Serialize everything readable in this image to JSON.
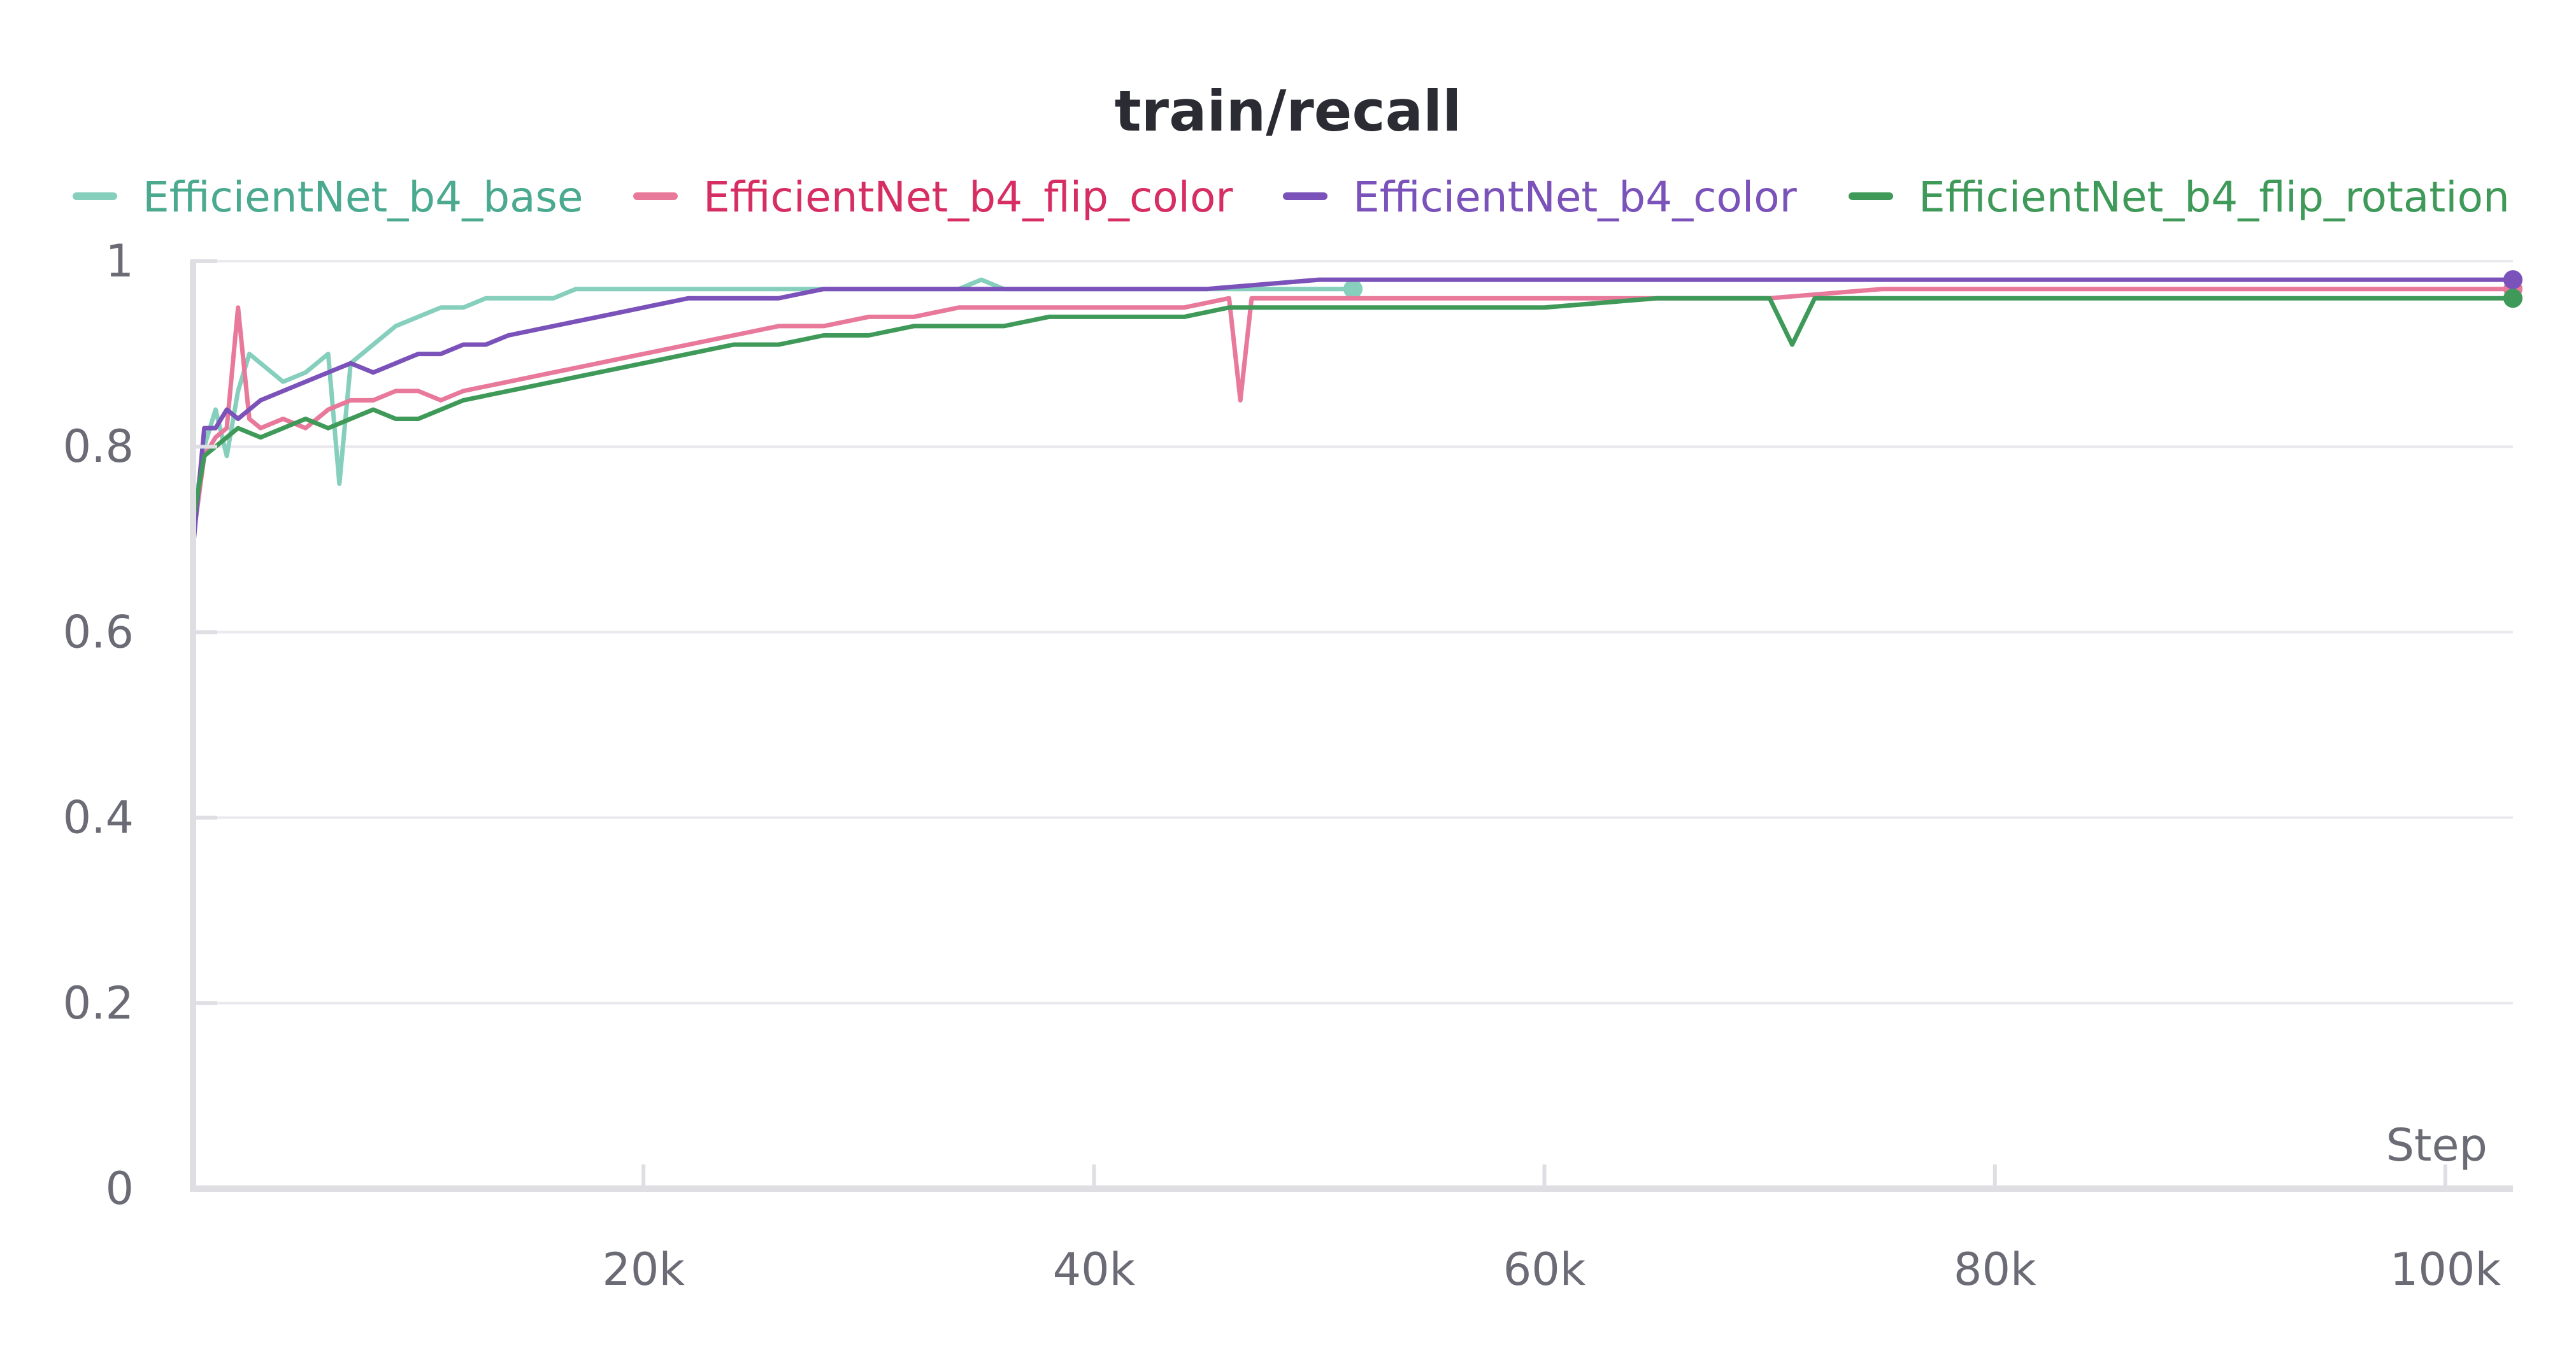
{
  "chart_data": {
    "type": "line",
    "title": "train/recall",
    "xlabel": "Step",
    "ylabel": "",
    "xlim": [
      0,
      103000
    ],
    "ylim": [
      0,
      1
    ],
    "grid": true,
    "legend_placement": "top",
    "x_ticks": [
      {
        "value": 20000,
        "label": "20k"
      },
      {
        "value": 40000,
        "label": "40k"
      },
      {
        "value": 60000,
        "label": "60k"
      },
      {
        "value": 80000,
        "label": "80k"
      },
      {
        "value": 100000,
        "label": "100k"
      }
    ],
    "y_ticks": [
      {
        "value": 0,
        "label": "0"
      },
      {
        "value": 0.2,
        "label": "0.2"
      },
      {
        "value": 0.4,
        "label": "0.4"
      },
      {
        "value": 0.6,
        "label": "0.6"
      },
      {
        "value": 0.8,
        "label": "0.8"
      },
      {
        "value": 1,
        "label": "1"
      }
    ],
    "series": [
      {
        "name": "EfficientNet_b4_base",
        "line_color": "#86cfbd",
        "label_color": "#4aa98f",
        "x": [
          0,
          500,
          1000,
          1500,
          2000,
          2500,
          3000,
          4000,
          5000,
          6000,
          6500,
          7000,
          8000,
          9000,
          10000,
          11000,
          12000,
          13000,
          14000,
          15000,
          16000,
          17000,
          18000,
          20000,
          22000,
          24000,
          26000,
          28000,
          30000,
          32000,
          34000,
          35000,
          36000,
          38000,
          40000,
          42000,
          44000,
          46000,
          48000,
          50000,
          51500
        ],
        "y": [
          0.72,
          0.8,
          0.84,
          0.79,
          0.86,
          0.9,
          0.89,
          0.87,
          0.88,
          0.9,
          0.76,
          0.89,
          0.91,
          0.93,
          0.94,
          0.95,
          0.95,
          0.96,
          0.96,
          0.96,
          0.96,
          0.97,
          0.97,
          0.97,
          0.97,
          0.97,
          0.97,
          0.97,
          0.97,
          0.97,
          0.97,
          0.98,
          0.97,
          0.97,
          0.97,
          0.97,
          0.97,
          0.97,
          0.97,
          0.97,
          0.97
        ]
      },
      {
        "name": "EfficientNet_b4_flip_color",
        "line_color": "#e8799b",
        "label_color": "#d62e63",
        "x": [
          0,
          500,
          1000,
          1500,
          2000,
          2500,
          3000,
          4000,
          5000,
          6000,
          7000,
          8000,
          9000,
          10000,
          11000,
          12000,
          14000,
          16000,
          18000,
          20000,
          22000,
          24000,
          26000,
          28000,
          30000,
          32000,
          34000,
          36000,
          38000,
          40000,
          42000,
          44000,
          46000,
          46500,
          47000,
          48000,
          50000,
          55000,
          60000,
          65000,
          70000,
          75000,
          80000,
          85000,
          90000,
          95000,
          100000,
          103000
        ],
        "y": [
          0.7,
          0.79,
          0.81,
          0.82,
          0.95,
          0.83,
          0.82,
          0.83,
          0.82,
          0.84,
          0.85,
          0.85,
          0.86,
          0.86,
          0.85,
          0.86,
          0.87,
          0.88,
          0.89,
          0.9,
          0.91,
          0.92,
          0.93,
          0.93,
          0.94,
          0.94,
          0.95,
          0.95,
          0.95,
          0.95,
          0.95,
          0.95,
          0.96,
          0.85,
          0.96,
          0.96,
          0.96,
          0.96,
          0.96,
          0.96,
          0.96,
          0.97,
          0.97,
          0.97,
          0.97,
          0.97,
          0.97,
          0.97
        ]
      },
      {
        "name": "EfficientNet_b4_color",
        "line_color": "#7a52b9",
        "label_color": "#7a52b9",
        "x": [
          0,
          500,
          1000,
          1500,
          2000,
          3000,
          4000,
          5000,
          6000,
          7000,
          8000,
          9000,
          10000,
          11000,
          12000,
          13000,
          14000,
          16000,
          18000,
          20000,
          22000,
          24000,
          26000,
          28000,
          30000,
          32000,
          34000,
          36000,
          38000,
          40000,
          45000,
          50000,
          55000,
          60000,
          65000,
          70000,
          75000,
          80000,
          85000,
          90000,
          95000,
          100000,
          103000
        ],
        "y": [
          0.69,
          0.82,
          0.82,
          0.84,
          0.83,
          0.85,
          0.86,
          0.87,
          0.88,
          0.89,
          0.88,
          0.89,
          0.9,
          0.9,
          0.91,
          0.91,
          0.92,
          0.93,
          0.94,
          0.95,
          0.96,
          0.96,
          0.96,
          0.97,
          0.97,
          0.97,
          0.97,
          0.97,
          0.97,
          0.97,
          0.97,
          0.98,
          0.98,
          0.98,
          0.98,
          0.98,
          0.98,
          0.98,
          0.98,
          0.98,
          0.98,
          0.98,
          0.98
        ]
      },
      {
        "name": "EfficientNet_b4_flip_rotation",
        "line_color": "#3f9a5a",
        "label_color": "#3f9a5a",
        "x": [
          0,
          500,
          1000,
          1500,
          2000,
          3000,
          4000,
          5000,
          6000,
          7000,
          8000,
          9000,
          10000,
          11000,
          12000,
          14000,
          16000,
          18000,
          20000,
          22000,
          24000,
          26000,
          28000,
          30000,
          32000,
          34000,
          36000,
          38000,
          40000,
          42000,
          44000,
          46000,
          48000,
          50000,
          55000,
          60000,
          65000,
          70000,
          71000,
          72000,
          75000,
          80000,
          85000,
          90000,
          95000,
          100000,
          103000
        ],
        "y": [
          0.72,
          0.79,
          0.8,
          0.81,
          0.82,
          0.81,
          0.82,
          0.83,
          0.82,
          0.83,
          0.84,
          0.83,
          0.83,
          0.84,
          0.85,
          0.86,
          0.87,
          0.88,
          0.89,
          0.9,
          0.91,
          0.91,
          0.92,
          0.92,
          0.93,
          0.93,
          0.93,
          0.94,
          0.94,
          0.94,
          0.94,
          0.95,
          0.95,
          0.95,
          0.95,
          0.95,
          0.96,
          0.96,
          0.91,
          0.96,
          0.96,
          0.96,
          0.96,
          0.96,
          0.96,
          0.96,
          0.96
        ]
      }
    ]
  }
}
